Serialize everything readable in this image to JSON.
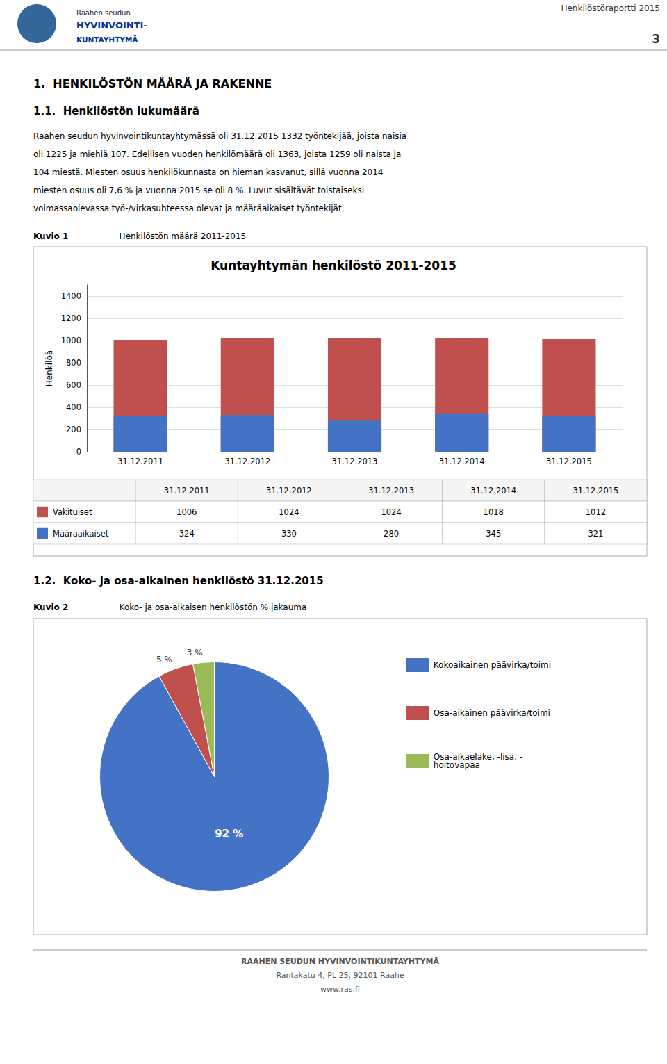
{
  "page": {
    "logo_lines": [
      "Raahen seudun",
      "HYVINVOINTI-",
      "KUNTAYHTYMÄ"
    ],
    "page_title": "Henkilöstöraportti 2015",
    "page_number": "3",
    "section1_title": "1.  HENKILÖSTÖN MÄÄRÄ JA RAKENNE",
    "section11_title": "1.1.  Henkilöstön lukumäärä",
    "body_lines": [
      "Raahen seudun hyvinvointikuntayhtymässä oli 31.12.2015 1332 työntekijää, joista naisia",
      "oli 1225 ja miehiä 107. Edellisen vuoden henkilömäärä oli 1363, joista 1259 oli naista ja",
      "104 miestä. Miesten osuus henkilökunnasta on hieman kasvanut, sillä vuonna 2014",
      "miesten osuus oli 7,6 % ja vuonna 2015 se oli 8 %. Luvut sisältävät toistaiseksi",
      "voimassaolevassa työ-/virkasuhteessa olevat ja määräaikaiset työntekijät."
    ],
    "kuvio1_label": "Kuvio 1",
    "kuvio1_title": "Henkilöstön määrä 2011-2015",
    "section12_title": "1.2.  Koko- ja osa-aikainen henkilöstö 31.12.2015",
    "kuvio2_label": "Kuvio 2",
    "kuvio2_title": "Koko- ja osa-aikaisen henkilöstön % jakauma",
    "footer_lines": [
      "RAAHEN SEUDUN HYVINVOINTIKUNTAYHTYMÄ",
      "Rantakatu 4, PL 25, 92101 Raahe",
      "www.ras.fi"
    ]
  },
  "chart_data": [
    {
      "type": "bar",
      "title": "Kuntayhtymän henkilöstö 2011-2015",
      "y_label": "Henkilöä",
      "categories": [
        "31.12.2011",
        "31.12.2012",
        "31.12.2013",
        "31.12.2014",
        "31.12.2015"
      ],
      "series": [
        {
          "name": "Vakituiset",
          "color": "#C0504D",
          "values": [
            1006,
            1024,
            1024,
            1018,
            1012
          ]
        },
        {
          "name": "Määräaikaiset",
          "color": "#4472C4",
          "values": [
            324,
            330,
            280,
            345,
            321
          ]
        }
      ],
      "ylim": [
        0,
        1500
      ],
      "yticks": [
        0,
        200,
        400,
        600,
        800,
        1000,
        1200,
        1400
      ],
      "grid": true
    },
    {
      "type": "pie",
      "categories": [
        "Kokoaikainen päävirka/toimi",
        "Osa-aikainen päävirka/toimi",
        "Osa-aikaeläke, -lisä, -\nhoitovapaa"
      ],
      "values": [
        92,
        5,
        3
      ],
      "value_labels": [
        "92 %",
        "5 %",
        "3 %"
      ],
      "colors": [
        "#4472C4",
        "#C0504D",
        "#9BBB59"
      ],
      "legend": "right"
    }
  ]
}
